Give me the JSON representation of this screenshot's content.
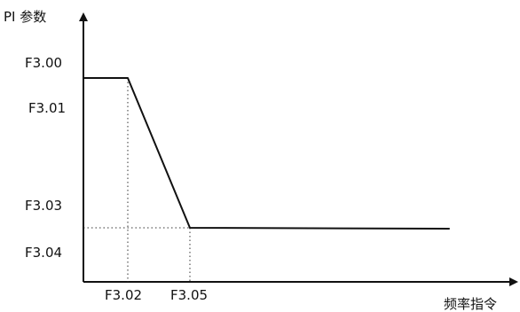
{
  "axes": {
    "y_label": "PI 参数",
    "x_label": "频率指令"
  },
  "y_ticks": [
    "F3.00",
    "F3.01",
    "F3.03",
    "F3.04"
  ],
  "x_ticks": [
    "F3.02",
    "F3.05"
  ]
}
